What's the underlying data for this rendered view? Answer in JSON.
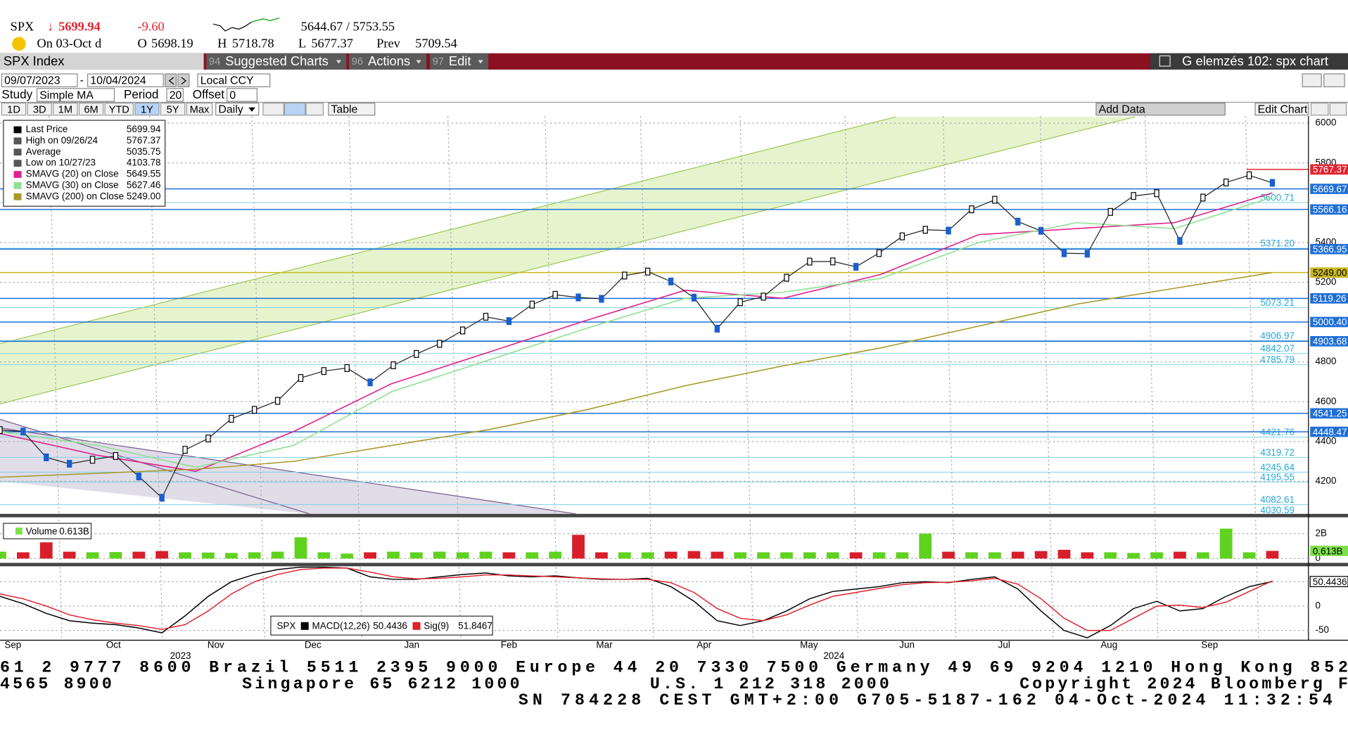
{
  "header": {
    "ticker": "SPX",
    "arrow": "↓",
    "last": "5699.94",
    "change": "-9.60",
    "range": "5644.67 / 5753.55",
    "date": "On 03-Oct d",
    "open_label": "O",
    "open": "5698.19",
    "high_label": "H",
    "high": "5718.78",
    "low_label": "L",
    "low": "5677.37",
    "prev_label": "Prev",
    "prev": "5709.54"
  },
  "toolbar": {
    "security": "SPX Index",
    "menus": [
      {
        "num": "94",
        "label": "Suggested Charts"
      },
      {
        "num": "96",
        "label": "Actions"
      },
      {
        "num": "97",
        "label": "Edit"
      }
    ],
    "title": "G elemzés 102: spx chart"
  },
  "controls": {
    "start": "09/07/2023",
    "end": "10/04/2024",
    "currency": "Local CCY",
    "study_label": "Study",
    "study": "Simple MA",
    "period_label": "Period",
    "period": "20",
    "offset_label": "Offset",
    "offset": "0",
    "ranges": [
      "1D",
      "3D",
      "1M",
      "6M",
      "YTD",
      "1Y",
      "5Y",
      "Max"
    ],
    "selected_range": "1Y",
    "freq": "Daily",
    "table": "Table",
    "add_data": "Add Data",
    "edit_chart": "Edit Chart"
  },
  "chart_data": {
    "type": "line",
    "legend": [
      {
        "name": "Last Price",
        "value": "5699.94",
        "color": "#000000"
      },
      {
        "name": "High on 09/26/24",
        "value": "5767.37",
        "color": "#555555"
      },
      {
        "name": "Average",
        "value": "5035.75",
        "color": "#555555"
      },
      {
        "name": "Low on 10/27/23",
        "value": "4103.78",
        "color": "#555555"
      },
      {
        "name": "SMAVG (20)  on Close",
        "value": "5649.55",
        "color": "#e0218a"
      },
      {
        "name": "SMAVG (30)  on Close",
        "value": "5627.46",
        "color": "#8fe08f"
      },
      {
        "name": "SMAVG (200)  on Close",
        "value": "5249.00",
        "color": "#a89a2a"
      }
    ],
    "x_labels": [
      "Sep",
      "Oct",
      "Nov",
      "Dec",
      "Jan",
      "Feb",
      "Mar",
      "Apr",
      "May",
      "Jun",
      "Jul",
      "Aug",
      "Sep"
    ],
    "years": [
      "2023",
      "2024"
    ],
    "ylim": [
      4036,
      6036
    ],
    "yticks": [
      4200,
      4400,
      4600,
      4800,
      5200,
      5400,
      5800,
      6000
    ],
    "series": [
      {
        "name": "Last Price",
        "color": "#1a5fd0",
        "values": [
          4457,
          4450,
          4320,
          4288,
          4308,
          4327,
          4224,
          4117,
          4358,
          4415,
          4514,
          4559,
          4604,
          4719,
          4754,
          4769,
          4697,
          4783,
          4840,
          4891,
          4958,
          5027,
          5005,
          5088,
          5137,
          5124,
          5117,
          5234,
          5254,
          5204,
          5123,
          4967,
          5100,
          5128,
          5223,
          5304,
          5305,
          5278,
          5347,
          5431,
          5464,
          5460,
          5567,
          5615,
          5505,
          5459,
          5346,
          5344,
          5554,
          5634,
          5648,
          5408,
          5626,
          5702,
          5738,
          5699.94
        ]
      },
      {
        "name": "SMAVG (20)",
        "color": "#e0218a",
        "values": [
          4440,
          4330,
          4250,
          4450,
          4690,
          4850,
          5010,
          5160,
          5120,
          5240,
          5440,
          5470,
          5500,
          5649.55
        ]
      },
      {
        "name": "SMAVG (30)",
        "color": "#8fe08f",
        "values": [
          4450,
          4380,
          4270,
          4380,
          4650,
          4810,
          4970,
          5120,
          5150,
          5220,
          5400,
          5500,
          5470,
          5627.46
        ]
      },
      {
        "name": "SMAVG (200)",
        "color": "#a89a2a",
        "values": [
          4220,
          4240,
          4260,
          4300,
          4380,
          4460,
          4560,
          4680,
          4780,
          4870,
          4980,
          5090,
          5170,
          5249
        ]
      }
    ],
    "levels": [
      {
        "value": 5767.37,
        "color": "#e2242f"
      },
      {
        "value": 5669.67,
        "color": "#1f6fd6"
      },
      {
        "value": 5566.16,
        "color": "#1f6fd6"
      },
      {
        "value": 5366.95,
        "color": "#1f6fd6"
      },
      {
        "value": 5249,
        "label": "5249.00",
        "color": "#c8b820"
      },
      {
        "value": 5119.26,
        "color": "#1f6fd6"
      },
      {
        "value": 5000.4,
        "label": "5000.40",
        "color": "#1f6fd6"
      },
      {
        "value": 4903.68,
        "color": "#1f6fd6"
      },
      {
        "value": 4541.25,
        "color": "#1f6fd6"
      },
      {
        "value": 4448.47,
        "color": "#1f6fd6"
      }
    ],
    "inner_levels": [
      {
        "value": 5600.71
      },
      {
        "value": 5371.2,
        "label": "5371.20"
      },
      {
        "value": 5073.21
      },
      {
        "value": 4906.97
      },
      {
        "value": 4842.07
      },
      {
        "value": 4785.79
      },
      {
        "value": 4421.76
      },
      {
        "value": 4319.72
      },
      {
        "value": 4245.64
      },
      {
        "value": 4195.55
      },
      {
        "value": 4082.61
      },
      {
        "value": 4030.59
      }
    ],
    "volume": {
      "name": "Volume",
      "value_label": "0.613B",
      "ylim": [
        0,
        3.1
      ],
      "yticks": [
        0,
        {
          "value": 2,
          "label": "2B"
        }
      ],
      "values": [
        0.55,
        0.5,
        1.3,
        0.55,
        0.5,
        0.52,
        0.55,
        0.6,
        0.5,
        0.48,
        0.45,
        0.5,
        0.55,
        1.7,
        0.5,
        0.4,
        0.5,
        0.55,
        0.5,
        0.55,
        0.5,
        0.55,
        0.5,
        0.5,
        0.55,
        1.9,
        0.5,
        0.5,
        0.5,
        0.55,
        0.6,
        0.55,
        0.5,
        0.5,
        0.5,
        0.5,
        0.5,
        0.5,
        0.5,
        0.5,
        2.0,
        0.55,
        0.5,
        0.5,
        0.55,
        0.6,
        0.7,
        0.5,
        0.5,
        0.45,
        0.5,
        0.55,
        0.5,
        2.4,
        0.5,
        0.613
      ]
    },
    "macd": {
      "ticker": "SPX",
      "ylim": [
        -70,
        80
      ],
      "yticks": [
        -50,
        0,
        50
      ],
      "series": [
        {
          "name": "MACD(12,26)",
          "color": "#000000",
          "values": [
            20,
            5,
            -15,
            -30,
            -35,
            -38,
            -45,
            -55,
            -20,
            20,
            50,
            65,
            75,
            80,
            80,
            78,
            60,
            55,
            55,
            60,
            65,
            68,
            62,
            60,
            62,
            58,
            55,
            55,
            57,
            40,
            10,
            -30,
            -40,
            -30,
            -10,
            15,
            30,
            35,
            40,
            48,
            50,
            48,
            55,
            60,
            35,
            -10,
            -50,
            -65,
            -40,
            -5,
            10,
            -10,
            -5,
            20,
            40,
            50.4436
          ]
        },
        {
          "name": "Sig(9)",
          "color": "#e0202a",
          "values": [
            25,
            15,
            0,
            -18,
            -28,
            -35,
            -40,
            -48,
            -38,
            -10,
            25,
            50,
            65,
            75,
            78,
            78,
            70,
            60,
            56,
            57,
            60,
            64,
            64,
            62,
            60,
            58,
            56,
            55,
            55,
            48,
            28,
            -5,
            -25,
            -30,
            -18,
            2,
            20,
            28,
            36,
            44,
            48,
            49,
            52,
            57,
            45,
            15,
            -25,
            -50,
            -50,
            -25,
            0,
            2,
            -3,
            8,
            30,
            51.8467
          ]
        }
      ]
    }
  },
  "footer": {
    "lines": [
      "61 2 9777 8600 Brazil 5511 2395 9000 Europe 44 20 7330 7500 Germany 49 69 9204 1210 Hong Kong 852",
      "4565 8900          Singapore 65 6212 1000          U.S. 1 212 318 2000          Copyright 2024 Bloomberg F",
      "SN 784228 CEST GMT+2:00 G705-5187-162 04-Oct-2024 11:32:54"
    ]
  }
}
